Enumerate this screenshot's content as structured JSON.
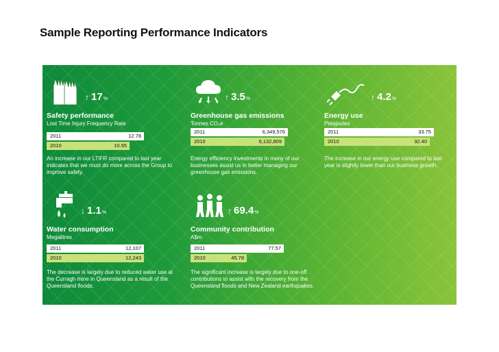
{
  "title": "Sample Reporting Performance Indicators",
  "cards": [
    {
      "heading": "Safety performance",
      "subtitle": "Lost Time Injury Frequency Rate",
      "change": "17",
      "unit": "%",
      "direction": "up",
      "row2011": {
        "year": "2011",
        "value": "12.78"
      },
      "row2010": {
        "year": "2010",
        "value": "10.95"
      },
      "description": "An increase in our LTIFR compared to last year indicates that we must do more across the Group to improve safety."
    },
    {
      "heading": "Greenhouse gas emissions",
      "subtitle": "Tonnes CO₂e",
      "change": "3.5",
      "unit": "%",
      "direction": "up",
      "row2011": {
        "year": "2011",
        "value": "6,349,576"
      },
      "row2010": {
        "year": "2010",
        "value": "6,132,809"
      },
      "description": "Energy efficiency investments in many of our businesses assist us in better managing our greenhouse gas emissions."
    },
    {
      "heading": "Energy use",
      "subtitle": "Petajoules",
      "change": "4.2",
      "unit": "%",
      "direction": "up",
      "row2011": {
        "year": "2011",
        "value": "33.75"
      },
      "row2010": {
        "year": "2010",
        "value": "32.40"
      },
      "description": "The increase in our energy use compared to last year is slightly lower than our business growth."
    },
    {
      "heading": "Water consumption",
      "subtitle": "Megalitres",
      "change": "1.1",
      "unit": "%",
      "direction": "down",
      "row2011": {
        "year": "2011",
        "value": "12,107"
      },
      "row2010": {
        "year": "2010",
        "value": "12,243"
      },
      "description": "The decrease is largely due to reduced water use at the Curragh mine in Queensland as a result of the Queensland floods."
    },
    {
      "heading": "Community contribution",
      "subtitle": "A$m",
      "change": "69.4",
      "unit": "%",
      "direction": "up",
      "row2011": {
        "year": "2011",
        "value": "77.57"
      },
      "row2010": {
        "year": "2010",
        "value": "45.78"
      },
      "description": "The significant increase is largely due to one-off contributions to assist with the recovery from the Queensland floods and New Zealand earthquakes."
    }
  ],
  "icons": [
    "gloves-icon",
    "cloud-icon",
    "plug-icon",
    "tap-icon",
    "people-icon"
  ],
  "arrows": {
    "up": "↑",
    "down": "↓"
  },
  "colors": {
    "panel_start": "#0e8a3a",
    "panel_end": "#8ac43a",
    "bar_2011": "#ffffff",
    "bar_2010": "#c8e27a"
  }
}
